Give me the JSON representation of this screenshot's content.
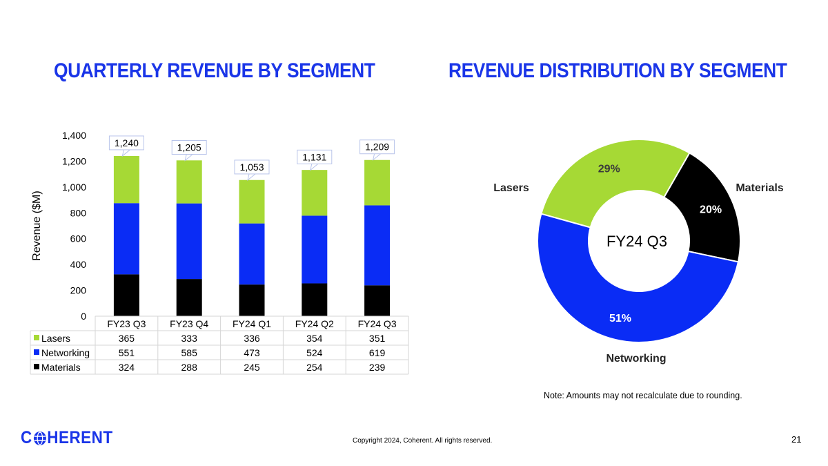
{
  "slide": {
    "title_left": "QUARTERLY REVENUE BY SEGMENT",
    "title_right": "REVENUE DISTRIBUTION BY SEGMENT",
    "note": "Note: Amounts may not recalculate due to rounding.",
    "copyright": "Copyright 2024, Coherent. All rights reserved.",
    "page_number": "21",
    "logo_before": "C",
    "logo_after": "HERENT",
    "logo_icon": "globe-icon",
    "colors": {
      "brand_blue": "#1a35e8",
      "lasers": "#a6d935",
      "networking": "#0a2cf5",
      "materials": "#000000"
    }
  },
  "chart_data": [
    {
      "type": "bar",
      "stacked": true,
      "title": "QUARTERLY REVENUE BY SEGMENT",
      "ylabel": "Revenue ($M)",
      "ylim": [
        0,
        1400
      ],
      "yticks": [
        0,
        200,
        400,
        600,
        800,
        1000,
        1200,
        1400
      ],
      "ytick_labels": [
        "0",
        "200",
        "400",
        "600",
        "800",
        "1,000",
        "1,200",
        "1,400"
      ],
      "categories": [
        "FY23 Q3",
        "FY23 Q4",
        "FY24 Q1",
        "FY24 Q2",
        "FY24 Q3"
      ],
      "series": [
        {
          "name": "Materials",
          "values": [
            324,
            288,
            245,
            254,
            239
          ],
          "color": "#000000"
        },
        {
          "name": "Networking",
          "values": [
            551,
            585,
            473,
            524,
            619
          ],
          "color": "#0a2cf5"
        },
        {
          "name": "Lasers",
          "values": [
            365,
            333,
            336,
            354,
            351
          ],
          "color": "#a6d935"
        }
      ],
      "table_rows": [
        "Lasers",
        "Networking",
        "Materials"
      ],
      "totals": [
        1240,
        1205,
        1053,
        1131,
        1209
      ],
      "total_labels": [
        "1,240",
        "1,205",
        "1,053",
        "1,131",
        "1,209"
      ]
    },
    {
      "type": "pie",
      "donut": true,
      "title": "REVENUE DISTRIBUTION BY SEGMENT",
      "center_label": "FY24 Q3",
      "slices": [
        {
          "name": "Lasers",
          "value": 29,
          "label": "29%",
          "color": "#a6d935",
          "label_color": "#3a3a3a"
        },
        {
          "name": "Materials",
          "value": 20,
          "label": "20%",
          "color": "#000000",
          "label_color": "#ffffff"
        },
        {
          "name": "Networking",
          "value": 51,
          "label": "51%",
          "color": "#0a2cf5",
          "label_color": "#ffffff"
        }
      ]
    }
  ]
}
